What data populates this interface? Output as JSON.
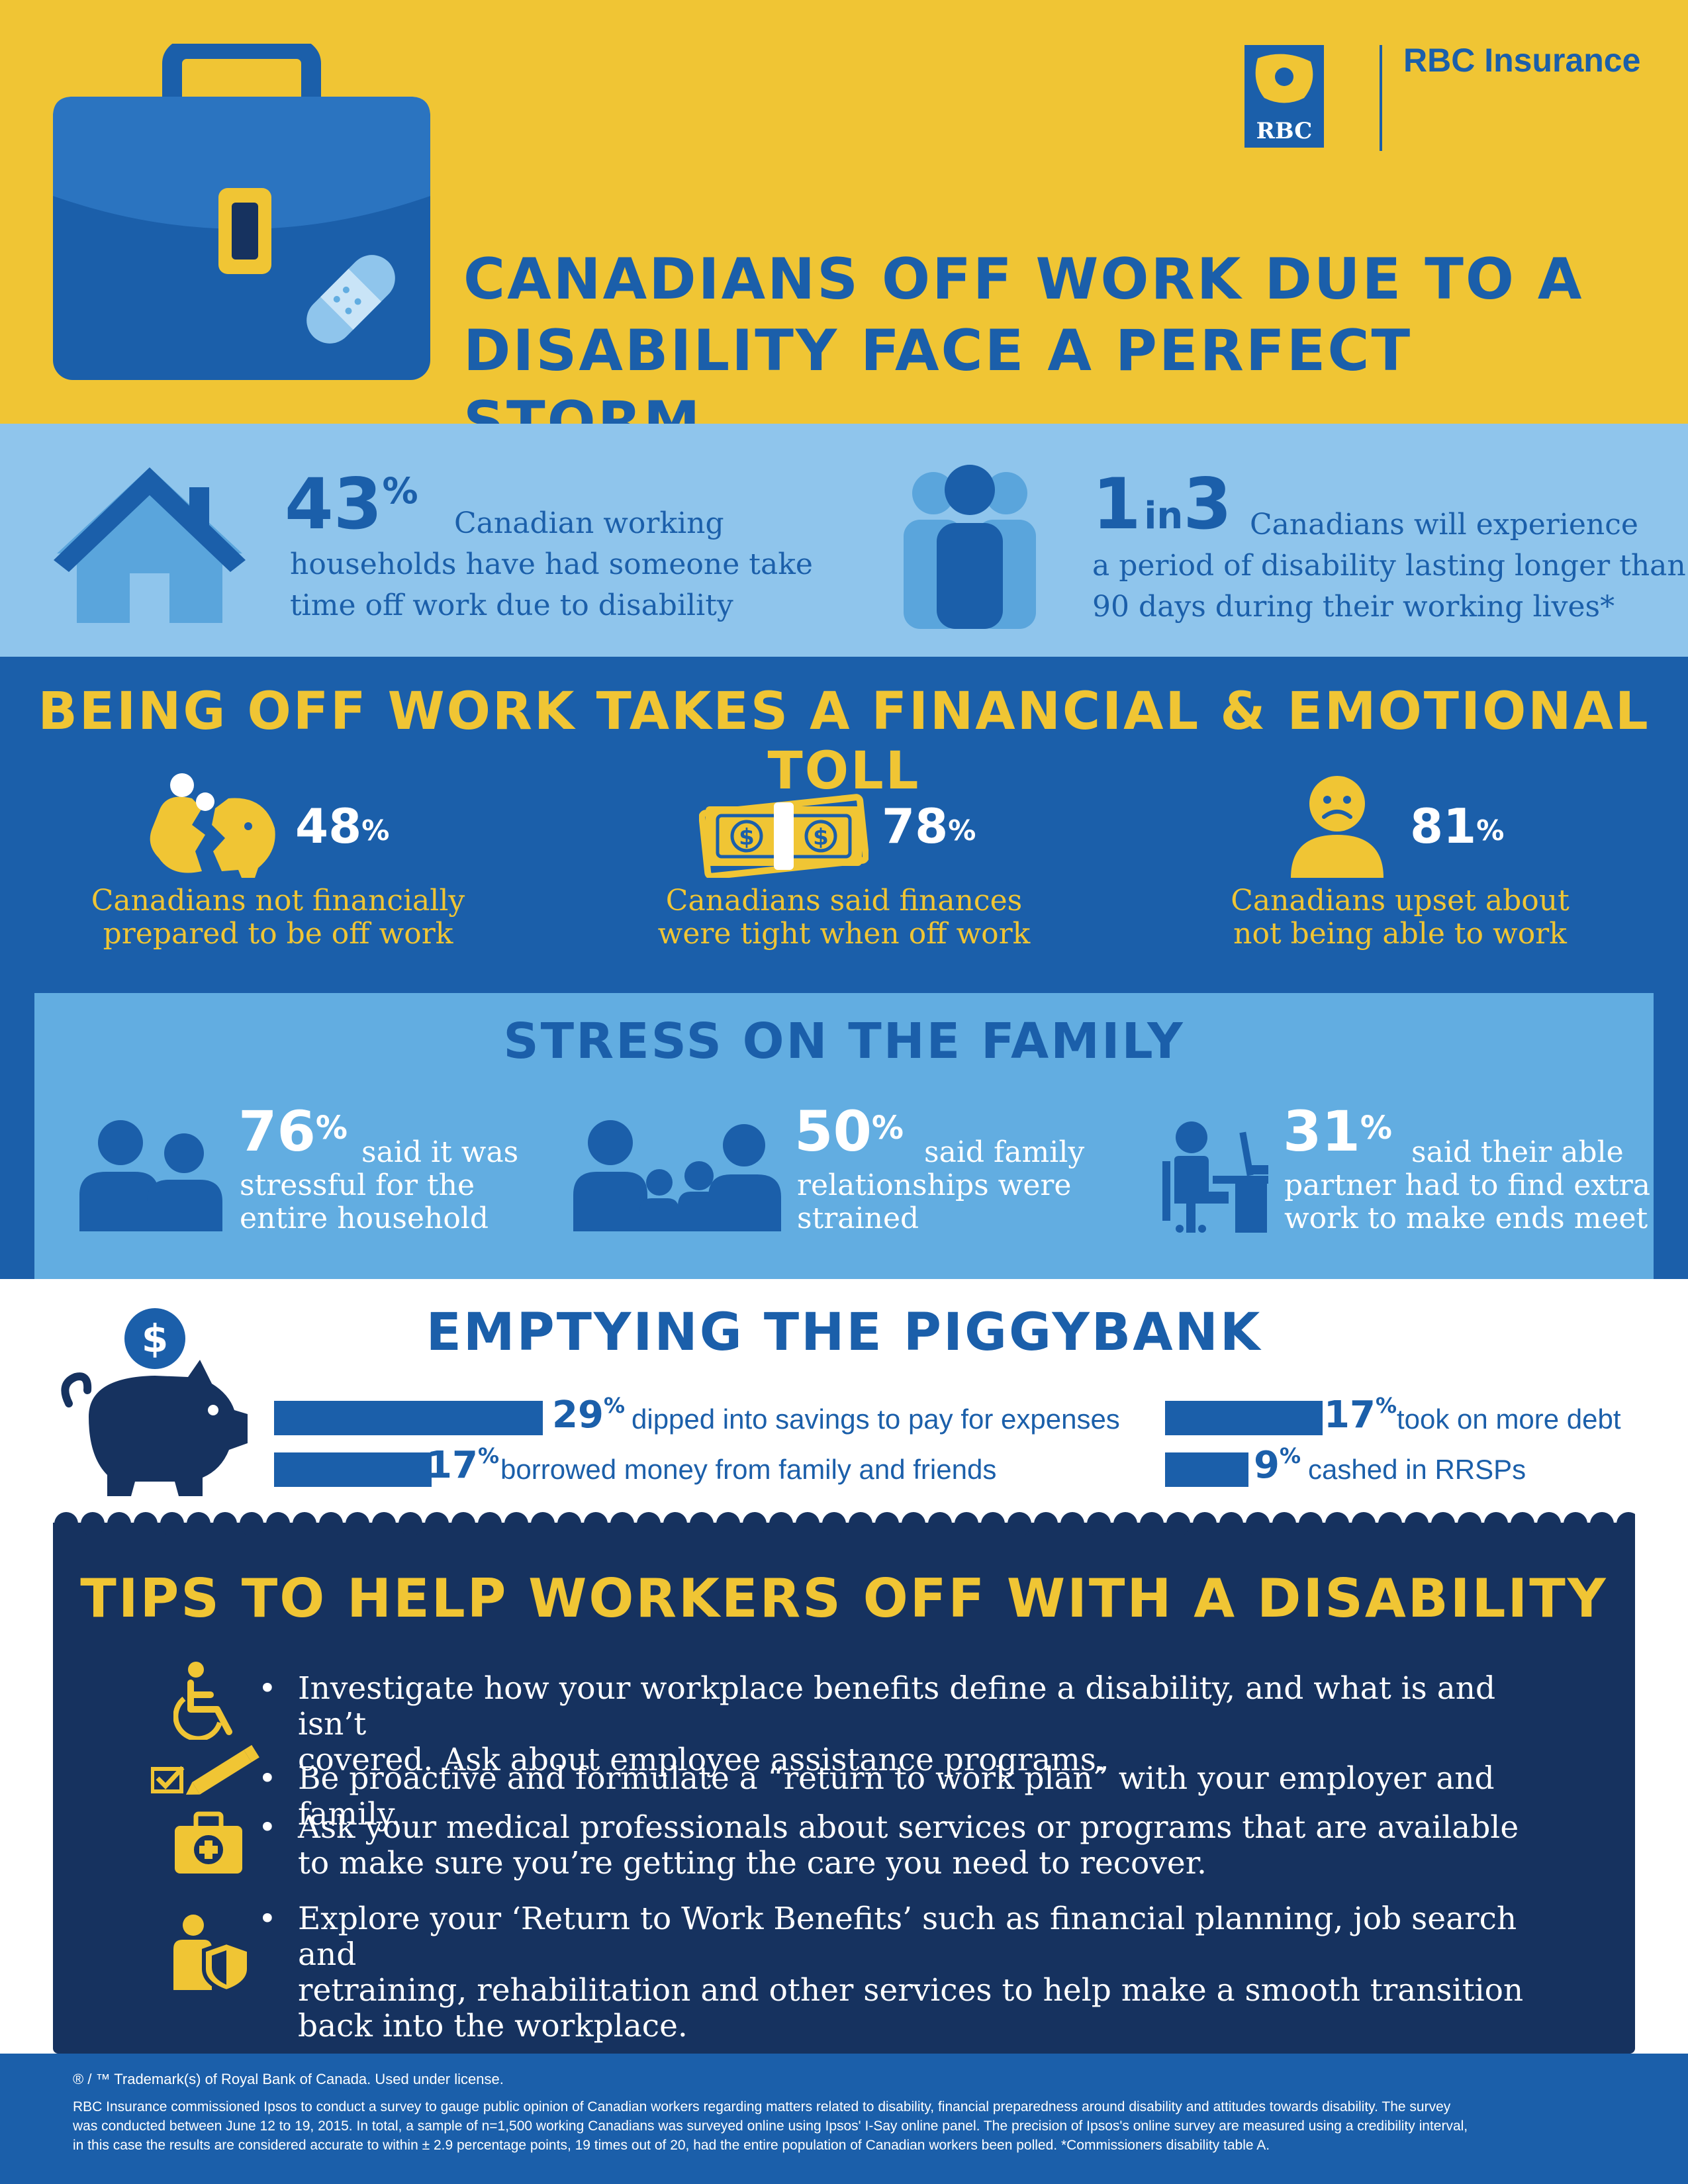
{
  "header": {
    "brand_name": "RBC Insurance",
    "logo_text": "RBC",
    "title_line1": "CANADIANS OFF WORK DUE TO A",
    "title_line2": "DISABILITY FACE A PERFECT STORM"
  },
  "facts": {
    "households_pct": "43",
    "households_pct_sign": "%",
    "households_text1": "Canadian working",
    "households_text2": "households have had someone take",
    "households_text3": "time off work due to disability",
    "one": "1",
    "in": "in",
    "three": "3",
    "disability_text1": "Canadians will experience",
    "disability_text2": "a period of disability lasting longer than",
    "disability_text3": "90 days during their working lives*"
  },
  "toll": {
    "title": "BEING OFF WORK TAKES A FINANCIAL & EMOTIONAL TOLL",
    "stats": [
      {
        "pct": "48",
        "sign": "%",
        "line1": "Canadians not financially",
        "line2": "prepared to be off work"
      },
      {
        "pct": "78",
        "sign": "%",
        "line1": "Canadians said finances",
        "line2": "were tight when off work"
      },
      {
        "pct": "81",
        "sign": "%",
        "line1": "Canadians upset about",
        "line2": "not being able to work"
      }
    ]
  },
  "stress": {
    "title": "STRESS ON THE FAMILY",
    "stats": [
      {
        "pct": "76",
        "sign": "%",
        "line1": "said it was",
        "line2": "stressful for the",
        "line3": "entire household"
      },
      {
        "pct": "50",
        "sign": "%",
        "line1": "said family",
        "line2": "relationships were",
        "line3": "strained"
      },
      {
        "pct": "31",
        "sign": "%",
        "line1": "said their able",
        "line2": "partner had to find extra",
        "line3": "work to make ends meet"
      }
    ]
  },
  "piggy": {
    "title": "EMPTYING THE PIGGYBANK",
    "coin_symbol": "$",
    "bars": [
      {
        "value": 29,
        "pct": "29",
        "sign": "%",
        "label": "dipped into savings to pay for expenses"
      },
      {
        "value": 17,
        "pct": "17",
        "sign": "%",
        "label": "borrowed money from family and friends"
      },
      {
        "value": 17,
        "pct": "17",
        "sign": "%",
        "label": "took on more debt"
      },
      {
        "value": 9,
        "pct": "9",
        "sign": "%",
        "label": "cashed in RRSPs"
      }
    ]
  },
  "tips": {
    "title": "TIPS TO HELP WORKERS OFF WITH A DISABILITY",
    "bullet": "•",
    "items": [
      {
        "line1": "Investigate how your workplace benefits define a disability, and what is and isn’t",
        "line2": "covered. Ask about employee assistance programs."
      },
      {
        "line1": "Be proactive and formulate a “return to work plan” with your employer and family."
      },
      {
        "line1": "Ask your medical professionals about services or programs that are available",
        "line2": "to make sure you’re getting the care you need to recover."
      },
      {
        "line1": "Explore your ‘Return to Work Benefits’ such as financial planning, job search and",
        "line2": "retraining, rehabilitation and other services to help make a smooth transition",
        "line3": "back into the workplace."
      }
    ]
  },
  "footer": {
    "trademark": "® / ™ Trademark(s) of Royal Bank of Canada. Used under license.",
    "survey_line1": "RBC Insurance commissioned Ipsos to conduct a survey to gauge public opinion of Canadian workers regarding matters related to disability, financial preparedness around disability and attitudes towards disability. The survey",
    "survey_line2": "was conducted between June 12 to 19, 2015. In total, a sample of n=1,500 working Canadians was surveyed online using Ipsos' I-Say online panel. The precision of Ipsos's online survey are measured using a credibility interval,",
    "survey_line3": "in this case the results are considered accurate to within ± 2.9 percentage points, 19 times out of 20, had the entire population of Canadian workers been polled. *Commissioners disability table A."
  },
  "colors": {
    "yellow": "#f0c534",
    "blue": "#1b5faa",
    "light_blue": "#8fc5ec",
    "mid_blue": "#62ade1",
    "navy": "#16325f"
  },
  "icons": [
    "briefcase-icon",
    "bandage-icon",
    "rbc-lion-logo",
    "house-icon",
    "people-group-icon",
    "broken-piggy-icon",
    "money-bills-icon",
    "sad-face-icon",
    "couple-icon",
    "family-icon",
    "worker-desk-icon",
    "piggybank-icon",
    "wheelchair-icon",
    "checklist-pencil-icon",
    "medical-kit-icon",
    "shield-person-icon"
  ]
}
